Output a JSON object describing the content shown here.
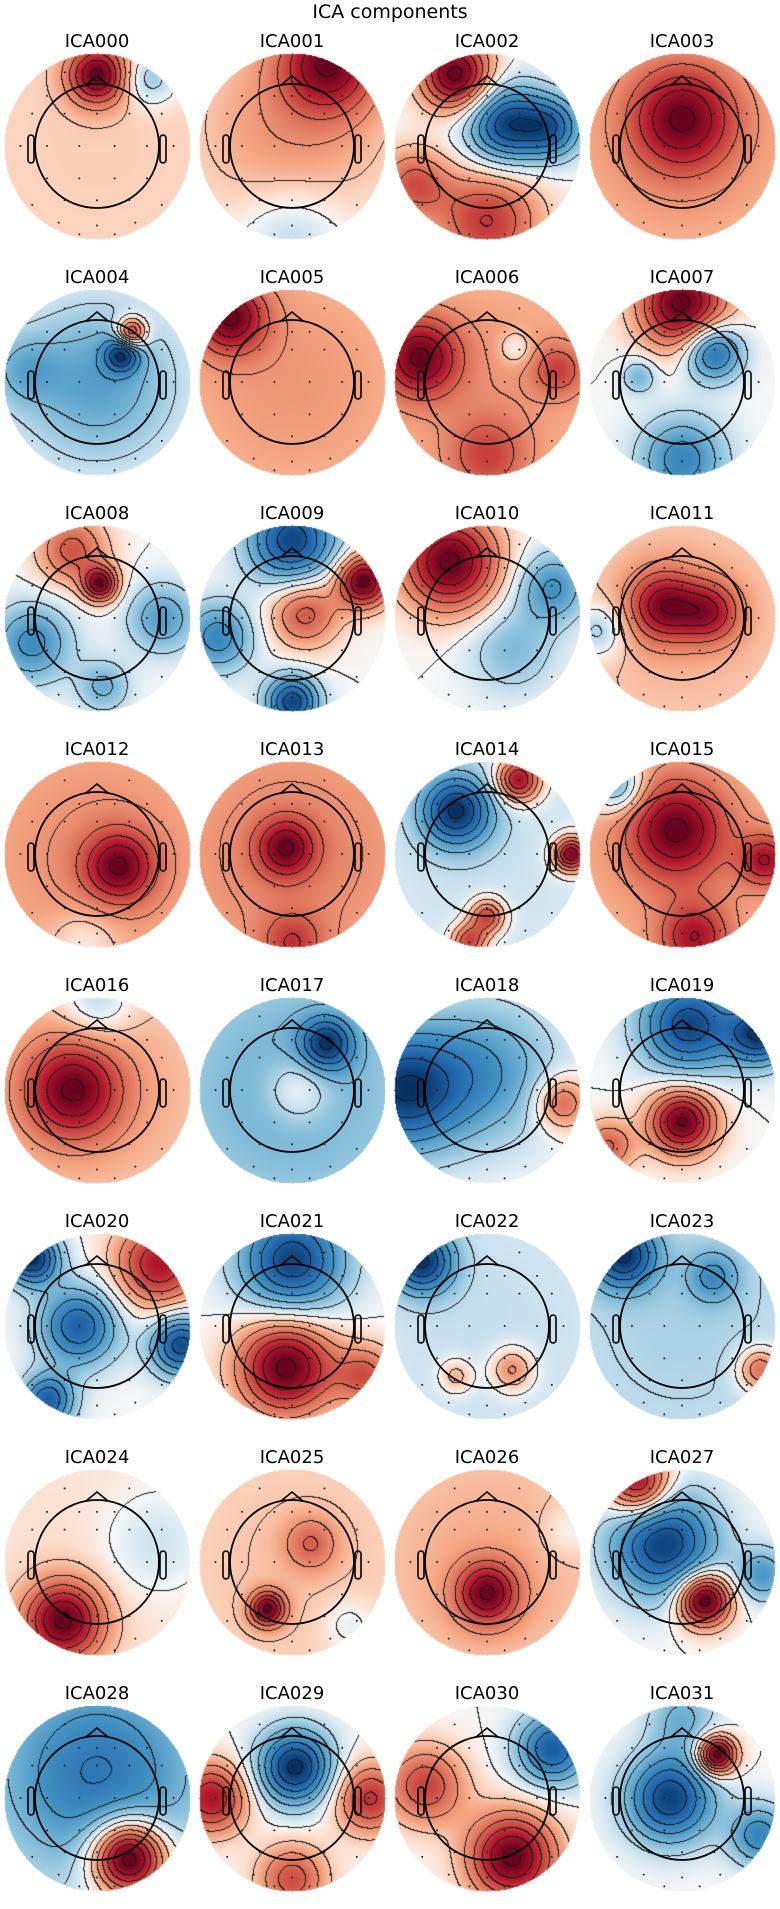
{
  "chart_data": {
    "type": "heatmap",
    "title": "ICA components",
    "colormap": "RdBu_r",
    "grid": false,
    "layout": "8 rows x 4 columns of scalp topomaps",
    "components": [
      {
        "name": "ICA000",
        "sources": [
          [
            0,
            1.15,
            1,
            0.33
          ],
          [
            0.85,
            1.1,
            -0.4,
            0.3
          ],
          [
            0,
            0,
            0.15,
            3
          ]
        ]
      },
      {
        "name": "ICA001",
        "sources": [
          [
            0.6,
            1.35,
            0.9,
            0.55
          ],
          [
            0,
            0.3,
            0.35,
            1.2
          ],
          [
            0,
            -1.4,
            -0.25,
            0.6
          ]
        ]
      },
      {
        "name": "ICA002",
        "sources": [
          [
            -0.5,
            1.15,
            0.8,
            0.4
          ],
          [
            0.3,
            0.35,
            -0.7,
            0.45
          ],
          [
            1.05,
            0.3,
            -0.5,
            0.35
          ],
          [
            0,
            -1.2,
            0.5,
            0.6
          ],
          [
            -1.2,
            -0.6,
            0.4,
            0.4
          ]
        ]
      },
      {
        "name": "ICA003",
        "sources": [
          [
            0,
            0.45,
            1,
            0.6
          ],
          [
            0,
            0,
            0.4,
            2
          ]
        ]
      },
      {
        "name": "ICA004",
        "sources": [
          [
            0.55,
            0.8,
            1,
            0.17
          ],
          [
            0.4,
            0.45,
            -0.8,
            0.2
          ],
          [
            0,
            0,
            -0.5,
            0.9
          ],
          [
            -1.2,
            0.2,
            -0.3,
            0.4
          ]
        ]
      },
      {
        "name": "ICA005",
        "sources": [
          [
            -1,
            1.05,
            0.9,
            0.4
          ],
          [
            0,
            0,
            0.35,
            2
          ]
        ]
      },
      {
        "name": "ICA006",
        "sources": [
          [
            -1.1,
            0.4,
            0.9,
            0.45
          ],
          [
            0.45,
            0.55,
            -0.3,
            0.18
          ],
          [
            1.15,
            0.2,
            0.45,
            0.3
          ],
          [
            0,
            -1.2,
            0.45,
            0.45
          ],
          [
            0,
            0,
            0.35,
            2
          ]
        ]
      },
      {
        "name": "ICA007",
        "sources": [
          [
            0,
            1.25,
            0.9,
            0.5
          ],
          [
            0.5,
            0.5,
            -0.7,
            0.33
          ],
          [
            0,
            -1.25,
            -0.5,
            0.5
          ],
          [
            -0.7,
            0.1,
            -0.3,
            0.2
          ]
        ]
      },
      {
        "name": "ICA008",
        "sources": [
          [
            0.05,
            0.55,
            1,
            0.2
          ],
          [
            -0.4,
            1.1,
            0.6,
            0.4
          ],
          [
            -1.05,
            -0.4,
            -0.6,
            0.45
          ],
          [
            1.05,
            0,
            -0.5,
            0.4
          ],
          [
            0.1,
            -1.1,
            -0.4,
            0.3
          ]
        ]
      },
      {
        "name": "ICA009",
        "sources": [
          [
            0,
            1.25,
            -0.8,
            0.5
          ],
          [
            1.15,
            0.6,
            0.9,
            0.3
          ],
          [
            0.2,
            0.1,
            0.5,
            0.4
          ],
          [
            0,
            -1.35,
            -0.8,
            0.3
          ],
          [
            -1.2,
            -0.3,
            -0.5,
            0.4
          ]
        ]
      },
      {
        "name": "ICA010",
        "sources": [
          [
            -0.6,
            0.9,
            1,
            0.55
          ],
          [
            1.05,
            0.5,
            -0.5,
            0.4
          ],
          [
            0.4,
            -0.5,
            -0.3,
            0.5
          ]
        ]
      },
      {
        "name": "ICA011",
        "sources": [
          [
            -0.3,
            0.2,
            1,
            0.4
          ],
          [
            0.45,
            0.1,
            0.8,
            0.35
          ],
          [
            -1.35,
            -0.2,
            -0.5,
            0.3
          ],
          [
            0,
            0,
            0.3,
            2
          ]
        ]
      },
      {
        "name": "ICA012",
        "sources": [
          [
            0.35,
            -0.2,
            1,
            0.4
          ],
          [
            0,
            0,
            0.5,
            2
          ],
          [
            -0.2,
            -1.4,
            -0.3,
            0.4
          ]
        ]
      },
      {
        "name": "ICA013",
        "sources": [
          [
            -0.1,
            0.1,
            1,
            0.33
          ],
          [
            0,
            0,
            0.6,
            2
          ],
          [
            0,
            -1.45,
            0.6,
            0.35
          ]
        ]
      },
      {
        "name": "ICA014",
        "sources": [
          [
            -0.5,
            0.7,
            -0.8,
            0.4
          ],
          [
            0.5,
            1.2,
            0.8,
            0.25
          ],
          [
            1.35,
            0,
            0.9,
            0.2
          ],
          [
            0,
            -1,
            0.6,
            0.2
          ],
          [
            -0.3,
            -1.4,
            0.6,
            0.2
          ],
          [
            0,
            0,
            -0.1,
            2
          ]
        ]
      },
      {
        "name": "ICA015",
        "sources": [
          [
            -0.1,
            0.4,
            1,
            0.55
          ],
          [
            -1.05,
            1.1,
            -0.8,
            0.3
          ],
          [
            1.35,
            -0.1,
            0.8,
            0.3
          ],
          [
            0.2,
            -1.35,
            0.8,
            0.4
          ],
          [
            0,
            0,
            0.4,
            2
          ]
        ]
      },
      {
        "name": "ICA016",
        "sources": [
          [
            -0.4,
            0,
            1,
            0.55
          ],
          [
            0,
            0,
            0.3,
            2
          ],
          [
            0,
            1.4,
            -0.4,
            0.4
          ]
        ]
      },
      {
        "name": "ICA017",
        "sources": [
          [
            0.55,
            0.75,
            -0.8,
            0.3
          ],
          [
            0,
            0,
            -0.45,
            1.5
          ],
          [
            0.1,
            0,
            0.4,
            0.4
          ]
        ]
      },
      {
        "name": "ICA018",
        "sources": [
          [
            -1.4,
            0,
            -1,
            0.7
          ],
          [
            0,
            0.3,
            -0.5,
            0.8
          ],
          [
            1.2,
            -0.2,
            0.6,
            0.3
          ]
        ]
      },
      {
        "name": "ICA019",
        "sources": [
          [
            0.1,
            1.05,
            -0.9,
            0.55
          ],
          [
            0,
            -0.5,
            1,
            0.38
          ],
          [
            1.25,
            0.9,
            -0.9,
            0.35
          ],
          [
            -1.2,
            -0.9,
            0.5,
            0.3
          ]
        ]
      },
      {
        "name": "ICA020",
        "sources": [
          [
            -1.05,
            1.1,
            -0.9,
            0.3
          ],
          [
            1,
            1,
            0.7,
            0.5
          ],
          [
            -0.3,
            0,
            -0.7,
            0.45
          ],
          [
            1.35,
            -0.3,
            -0.8,
            0.35
          ],
          [
            -0.8,
            -1.2,
            -0.7,
            0.3
          ]
        ]
      },
      {
        "name": "ICA021",
        "sources": [
          [
            0,
            1.05,
            -0.9,
            0.6
          ],
          [
            -0.1,
            -0.65,
            1,
            0.55
          ],
          [
            1.2,
            -0.8,
            0.5,
            0.35
          ]
        ]
      },
      {
        "name": "ICA022",
        "sources": [
          [
            -1.05,
            1.05,
            -0.7,
            0.35
          ],
          [
            0,
            0,
            -0.1,
            2
          ],
          [
            0.4,
            -0.7,
            0.35,
            0.25
          ],
          [
            -0.5,
            -0.8,
            0.25,
            0.2
          ]
        ]
      },
      {
        "name": "ICA023",
        "sources": [
          [
            -0.95,
            1.15,
            -0.9,
            0.38
          ],
          [
            0.5,
            0.8,
            -0.4,
            0.3
          ],
          [
            0,
            0,
            -0.2,
            2
          ],
          [
            1.25,
            -0.7,
            0.6,
            0.25
          ]
        ]
      },
      {
        "name": "ICA024",
        "sources": [
          [
            -0.55,
            -0.95,
            1,
            0.45
          ],
          [
            0.9,
            0.3,
            -0.2,
            0.6
          ],
          [
            0,
            0,
            0.1,
            2
          ]
        ]
      },
      {
        "name": "ICA025",
        "sources": [
          [
            -0.4,
            -0.75,
            1,
            0.2
          ],
          [
            0.3,
            0.3,
            0.4,
            0.3
          ],
          [
            0,
            0,
            0.2,
            2
          ],
          [
            0.9,
            -1,
            -0.2,
            0.3
          ]
        ]
      },
      {
        "name": "ICA026",
        "sources": [
          [
            0,
            -0.5,
            1,
            0.35
          ],
          [
            0,
            0,
            0.3,
            2
          ],
          [
            1.3,
            0.5,
            -0.2,
            0.3
          ]
        ]
      },
      {
        "name": "ICA027",
        "sources": [
          [
            -0.3,
            0.3,
            -0.8,
            0.6
          ],
          [
            0.35,
            -0.6,
            1,
            0.3
          ],
          [
            -0.7,
            1.25,
            0.8,
            0.35
          ],
          [
            1.3,
            -0.2,
            -0.4,
            0.3
          ]
        ]
      },
      {
        "name": "ICA028",
        "sources": [
          [
            0,
            0.4,
            -0.5,
            1.2
          ],
          [
            0.5,
            -0.95,
            1,
            0.42
          ]
        ]
      },
      {
        "name": "ICA029",
        "sources": [
          [
            0.05,
            0.5,
            -0.9,
            0.42
          ],
          [
            -1.3,
            0,
            0.7,
            0.4
          ],
          [
            1.25,
            0,
            0.6,
            0.4
          ],
          [
            0,
            -1.3,
            0.5,
            0.4
          ]
        ]
      },
      {
        "name": "ICA030",
        "sources": [
          [
            0.4,
            -0.95,
            1,
            0.5
          ],
          [
            -1,
            0.2,
            0.6,
            0.45
          ],
          [
            1.05,
            0.8,
            -0.8,
            0.4
          ]
        ]
      },
      {
        "name": "ICA031",
        "sources": [
          [
            0.55,
            0.7,
            1,
            0.22
          ],
          [
            -0.2,
            0,
            -0.8,
            0.5
          ],
          [
            1.25,
            -0.6,
            -0.5,
            0.35
          ],
          [
            0,
            1.3,
            -0.3,
            0.4
          ]
        ]
      }
    ]
  }
}
